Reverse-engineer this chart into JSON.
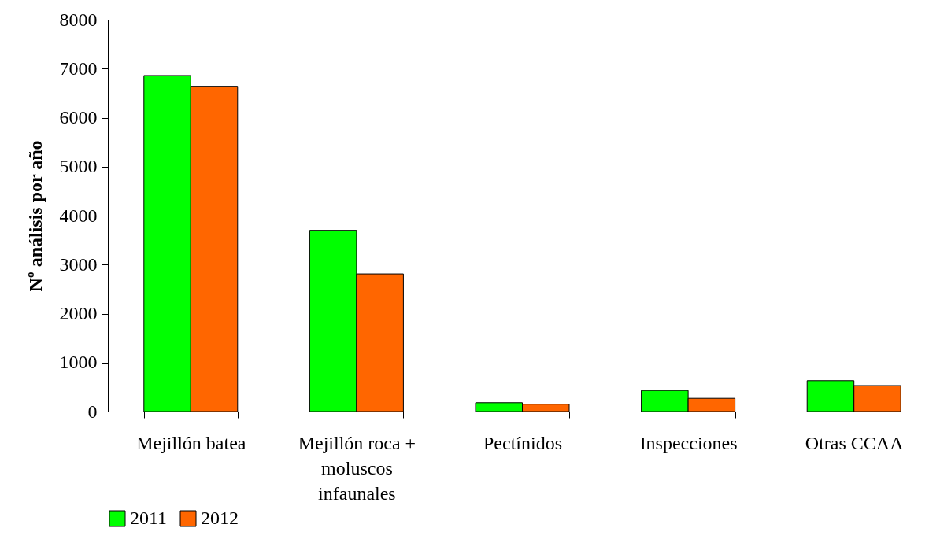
{
  "chart_data": {
    "type": "bar",
    "ylabel": "Nº análisis por año",
    "categories": [
      "Mejillón batea",
      "Mejillón roca + moluscos infaunales",
      "Pectínidos",
      "Inspecciones",
      "Otras CCAA"
    ],
    "series": [
      {
        "name": "2011",
        "color": "#00ff00",
        "values": [
          6860,
          3700,
          180,
          430,
          630
        ]
      },
      {
        "name": "2012",
        "color": "#ff6600",
        "values": [
          6640,
          2810,
          150,
          270,
          530
        ]
      }
    ],
    "ylim": [
      0,
      8000
    ],
    "yticks": [
      0,
      1000,
      2000,
      3000,
      4000,
      5000,
      6000,
      7000,
      8000
    ],
    "grid": false,
    "legend": "bottom"
  }
}
